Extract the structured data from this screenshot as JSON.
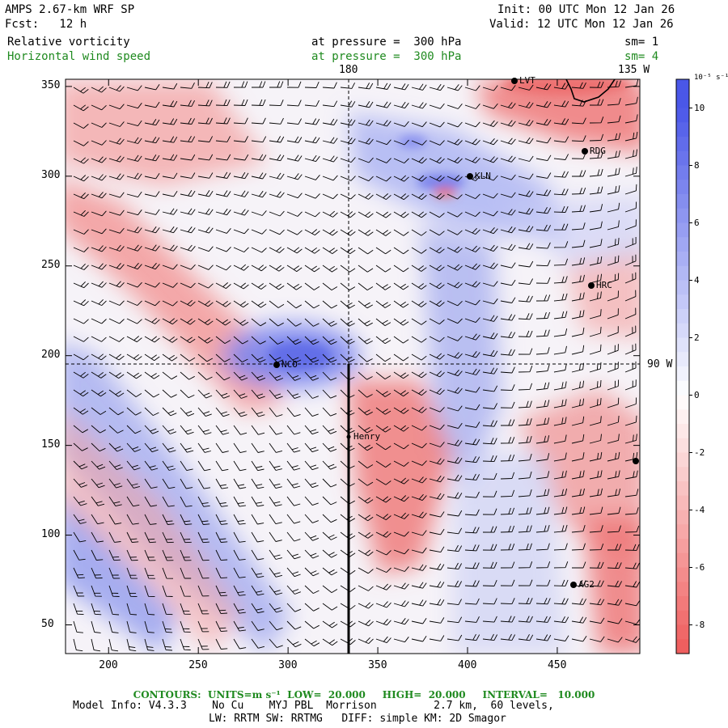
{
  "header": {
    "model_title": "AMPS 2.67-km WRF SP",
    "forecast": "Fcst:   12 h",
    "init": "Init: 00 UTC Mon 12 Jan 26",
    "valid": "Valid: 12 UTC Mon 12 Jan 26",
    "field1_name": "Relative vorticity",
    "field1_level": "at pressure =  300 hPa",
    "field1_sm": "sm= 1",
    "field2_name": "Horizontal wind speed",
    "field2_level": "at pressure =  300 hPa",
    "field2_sm": "sm= 4"
  },
  "map": {
    "lon_label_180": "180",
    "lon_label_135w": "135 W",
    "lon_label_90w": "90 W",
    "x_ticks": [
      "200",
      "250",
      "300",
      "350",
      "400",
      "450"
    ],
    "y_ticks": [
      "50",
      "100",
      "150",
      "200",
      "250",
      "300",
      "350"
    ],
    "stations": [
      {
        "id": "LVT",
        "label": "LVT"
      },
      {
        "id": "RDG",
        "label": "RDG"
      },
      {
        "id": "KLN",
        "label": "KLN"
      },
      {
        "id": "HRC",
        "label": "HRC"
      },
      {
        "id": "NCO",
        "label": "NCO"
      },
      {
        "id": "Henry",
        "label": "Henry"
      },
      {
        "id": "AG2",
        "label": "AG2"
      }
    ]
  },
  "colorbar": {
    "unit_label": "10⁻⁵ s⁻¹",
    "tick_labels": [
      "10",
      "8",
      "6",
      "4",
      "2",
      "0",
      "-2",
      "-4",
      "-6",
      "-8"
    ],
    "positive_color": "#4a57e8",
    "negative_color": "#ef5a5a"
  },
  "footer": {
    "contours": "CONTOURS:  UNITS=m s⁻¹  LOW=  20.000     HIGH=  20.000     INTERVAL=   10.000",
    "model_info": "Model Info: V4.3.3    No Cu    MYJ PBL  Morrison         2.7 km,  60 levels,",
    "model_info2": "LW: RRTM SW: RRTMG   DIFF: simple KM: 2D Smagor"
  }
}
